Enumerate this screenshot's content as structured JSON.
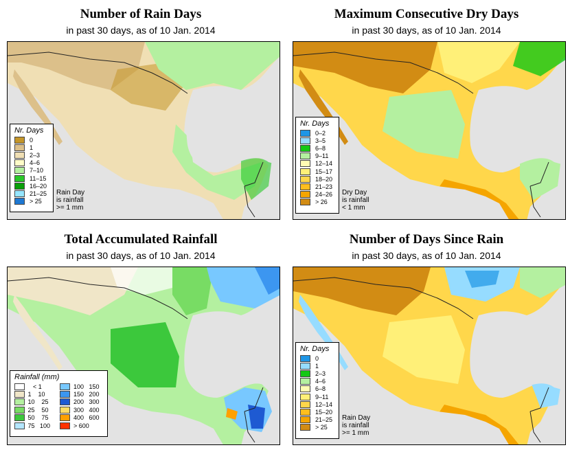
{
  "panels": [
    {
      "title": "Number of Rain Days",
      "subtitle": "in past 30 days, as of  10 Jan. 2014",
      "legend_title": "Nr. Days",
      "legend": [
        {
          "label": "0",
          "color": "#c4962a"
        },
        {
          "label": "1",
          "color": "#dcc08a"
        },
        {
          "label": "2–3",
          "color": "#f0dfb4"
        },
        {
          "label": "4–6",
          "color": "#fffcc8"
        },
        {
          "label": "7–10",
          "color": "#b4f0a0"
        },
        {
          "label": "11–15",
          "color": "#28c828"
        },
        {
          "label": "16–20",
          "color": "#0aa00a"
        },
        {
          "label": "21–25",
          "color": "#96e6ff"
        },
        {
          "label": "> 25",
          "color": "#1e78d2"
        }
      ],
      "note": [
        "Rain Day",
        "is rainfall",
        ">= 1 mm"
      ]
    },
    {
      "title": "Maximum Consecutive Dry Days",
      "subtitle": "in past 30 days, as of  10 Jan. 2014",
      "legend_title": "Nr. Days",
      "legend": [
        {
          "label": "0–2",
          "color": "#1e96e6"
        },
        {
          "label": "3–5",
          "color": "#96dcff"
        },
        {
          "label": "6–8",
          "color": "#14c814"
        },
        {
          "label": "9–11",
          "color": "#b4f0a0"
        },
        {
          "label": "12–14",
          "color": "#fffcb4"
        },
        {
          "label": "15–17",
          "color": "#fff078"
        },
        {
          "label": "18–20",
          "color": "#ffd74b"
        },
        {
          "label": "21–23",
          "color": "#ffbe1e"
        },
        {
          "label": "24–26",
          "color": "#f5a500"
        },
        {
          "label": "> 26",
          "color": "#d28c14"
        }
      ],
      "note": [
        "Dry Day",
        "is rainfall",
        "< 1 mm"
      ]
    },
    {
      "title": "Total Accumulated Rainfall",
      "subtitle": "in past 30 days, as of  10 Jan. 2014",
      "legend_title": "Rainfall (mm)",
      "legend_left": [
        {
          "label": "   < 1",
          "color": "#ffffff"
        },
        {
          "label": "1    10",
          "color": "#f0e6c8"
        },
        {
          "label": "10    25",
          "color": "#b4f0a0"
        },
        {
          "label": "25    50",
          "color": "#78dc64"
        },
        {
          "label": "50    75",
          "color": "#3cc83c"
        },
        {
          "label": "75   100",
          "color": "#b4e6ff"
        }
      ],
      "legend_right": [
        {
          "label": "100   150",
          "color": "#78c8ff"
        },
        {
          "label": "150   200",
          "color": "#3c96f0"
        },
        {
          "label": "200   300",
          "color": "#1e5ad2"
        },
        {
          "label": "300   400",
          "color": "#ffdc64"
        },
        {
          "label": "400   600",
          "color": "#ffa000"
        },
        {
          "label": "> 600",
          "color": "#ff3200"
        }
      ]
    },
    {
      "title": "Number of Days Since Rain",
      "subtitle": "in past 30 days, as of  10 Jan. 2014",
      "legend_title": "Nr. Days",
      "legend": [
        {
          "label": "0",
          "color": "#1e96e6"
        },
        {
          "label": "1",
          "color": "#96dcff"
        },
        {
          "label": "2–3",
          "color": "#14c814"
        },
        {
          "label": "4–6",
          "color": "#b4f0a0"
        },
        {
          "label": "6–8",
          "color": "#fffcb4"
        },
        {
          "label": "9–11",
          "color": "#fff078"
        },
        {
          "label": "12–14",
          "color": "#ffd74b"
        },
        {
          "label": "15–20",
          "color": "#ffbe1e"
        },
        {
          "label": "21–25",
          "color": "#f5a500"
        },
        {
          "label": "> 25",
          "color": "#d28c14"
        }
      ],
      "note": [
        "Rain Day",
        "is rainfall",
        ">= 1 mm"
      ]
    }
  ],
  "map_colors": {
    "ocean": "#e3e3e3",
    "border": "#222222"
  }
}
